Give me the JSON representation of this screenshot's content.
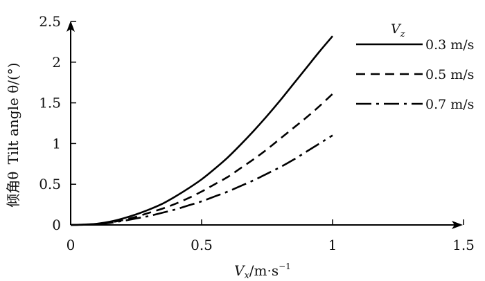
{
  "chart_data": {
    "type": "line",
    "xlabel": {
      "main": "V",
      "sub": "x",
      "rest": "/m·s",
      "sup": "−1"
    },
    "ylabel": {
      "cn": "倾角θ",
      "en": "Tilt angle θ/(°)"
    },
    "xlim": [
      0,
      1.5
    ],
    "ylim": [
      0,
      2.5
    ],
    "xticks": [
      "0",
      "0.5",
      "1",
      "1.5"
    ],
    "yticks": [
      "0",
      "0.5",
      "1",
      "1.5",
      "2",
      "2.5"
    ],
    "legend": {
      "title_main": "V",
      "title_sub": "z",
      "position": "top-right"
    },
    "series": [
      {
        "name": "0.3 m/s",
        "style": "solid",
        "x": [
          0,
          0.05,
          0.1,
          0.15,
          0.2,
          0.25,
          0.3,
          0.35,
          0.4,
          0.45,
          0.5,
          0.55,
          0.6,
          0.65,
          0.7,
          0.75,
          0.8,
          0.85,
          0.9,
          0.95,
          1.0
        ],
        "values": [
          0,
          0.005,
          0.015,
          0.04,
          0.08,
          0.13,
          0.19,
          0.26,
          0.35,
          0.45,
          0.56,
          0.69,
          0.83,
          0.99,
          1.16,
          1.34,
          1.53,
          1.73,
          1.93,
          2.13,
          2.32
        ]
      },
      {
        "name": "0.5 m/s",
        "style": "dashed",
        "x": [
          0,
          0.05,
          0.1,
          0.15,
          0.2,
          0.25,
          0.3,
          0.35,
          0.4,
          0.45,
          0.5,
          0.55,
          0.6,
          0.65,
          0.7,
          0.75,
          0.8,
          0.85,
          0.9,
          0.95,
          1.0
        ],
        "values": [
          0,
          0.004,
          0.012,
          0.03,
          0.06,
          0.1,
          0.15,
          0.2,
          0.26,
          0.33,
          0.41,
          0.5,
          0.59,
          0.7,
          0.81,
          0.93,
          1.06,
          1.19,
          1.32,
          1.46,
          1.61
        ]
      },
      {
        "name": "0.7 m/s",
        "style": "dashdot",
        "x": [
          0,
          0.05,
          0.1,
          0.15,
          0.2,
          0.25,
          0.3,
          0.35,
          0.4,
          0.45,
          0.5,
          0.55,
          0.6,
          0.65,
          0.7,
          0.75,
          0.8,
          0.85,
          0.9,
          0.95,
          1.0
        ],
        "values": [
          0,
          0.003,
          0.01,
          0.025,
          0.05,
          0.08,
          0.11,
          0.15,
          0.19,
          0.24,
          0.29,
          0.35,
          0.41,
          0.48,
          0.55,
          0.63,
          0.71,
          0.8,
          0.9,
          1.0,
          1.1
        ]
      }
    ]
  }
}
